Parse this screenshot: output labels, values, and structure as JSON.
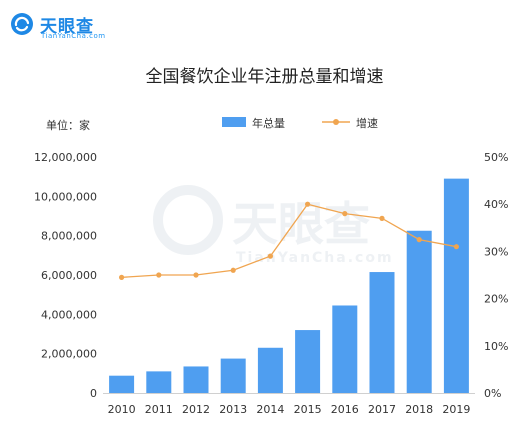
{
  "header": {
    "logo_text": "天眼查",
    "logo_sub": "TianYanCha.com"
  },
  "chart_data": {
    "type": "bar",
    "title": "全国餐饮企业年注册总量和增速",
    "unit_label": "单位：家",
    "categories": [
      "2010",
      "2011",
      "2012",
      "2013",
      "2014",
      "2015",
      "2016",
      "2017",
      "2018",
      "2019"
    ],
    "series": [
      {
        "name": "年总量",
        "type": "bar",
        "axis": "left",
        "color": "#4f9ef0",
        "values": [
          880000,
          1100000,
          1350000,
          1750000,
          2300000,
          3200000,
          4450000,
          6150000,
          8250000,
          10900000
        ]
      },
      {
        "name": "增速",
        "type": "line",
        "axis": "right",
        "color": "#f0a550",
        "values": [
          24.5,
          25.0,
          25.0,
          26.0,
          29.0,
          40.0,
          38.0,
          37.0,
          32.5,
          31.0
        ]
      }
    ],
    "left_axis": {
      "ticks": [
        "0",
        "2,000,000",
        "4,000,000",
        "6,000,000",
        "8,000,000",
        "10,000,000",
        "12,000,000"
      ],
      "ylim": [
        0,
        12000000
      ]
    },
    "right_axis": {
      "ticks": [
        "0%",
        "10%",
        "20%",
        "30%",
        "40%",
        "50%"
      ],
      "ylim": [
        0,
        50
      ]
    },
    "grid": false,
    "legend_position": "top"
  },
  "watermark": {
    "text": "天眼查",
    "sub": "TianYanCha.com"
  }
}
